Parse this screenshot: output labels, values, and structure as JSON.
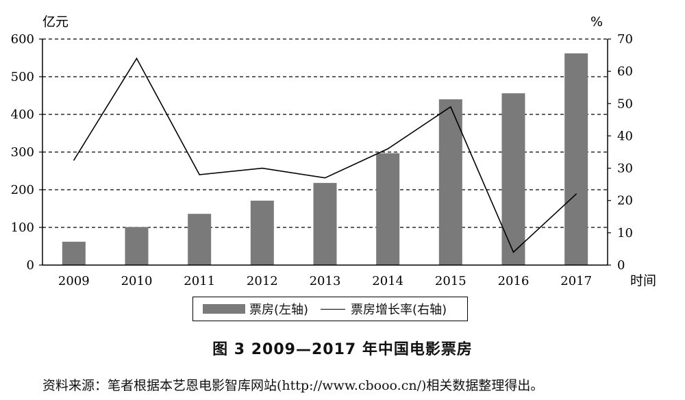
{
  "chart_data": {
    "type": "bar+line",
    "categories": [
      "2009",
      "2010",
      "2011",
      "2012",
      "2013",
      "2014",
      "2015",
      "2016",
      "2017"
    ],
    "series": [
      {
        "name": "票房(左轴)",
        "type": "bar",
        "axis": "left",
        "color": "#7a7a7a",
        "values": [
          62,
          101,
          136,
          171,
          218,
          297,
          440,
          456,
          562
        ]
      },
      {
        "name": "票房增长率(右轴)",
        "type": "line",
        "axis": "right",
        "color": "#000000",
        "values": [
          32.5,
          64,
          28,
          30,
          27,
          36,
          49,
          4,
          22
        ]
      }
    ],
    "left_axis": {
      "unit": "亿元",
      "ylim": [
        0,
        600
      ],
      "ticks": [
        "0",
        "100",
        "200",
        "300",
        "400",
        "500",
        "600"
      ]
    },
    "right_axis": {
      "unit": "%",
      "ylim": [
        0,
        70
      ],
      "ticks": [
        "0",
        "10",
        "20",
        "30",
        "40",
        "50",
        "60",
        "70"
      ]
    },
    "xlabel": "时间",
    "grid": "dashed horizontal",
    "legend_position": "bottom"
  },
  "caption": "图 3  2009—2017 年中国电影票房",
  "source": "资料来源：笔者根据本艺恩电影智库网站(http://www.cbooo.cn/)相关数据整理得出。"
}
